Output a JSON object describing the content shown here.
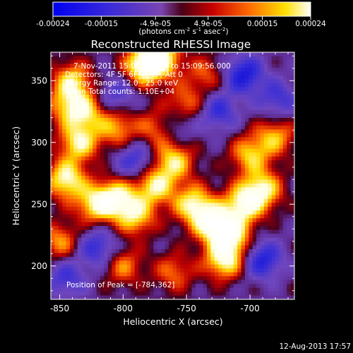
{
  "colorbar": {
    "ticks": [
      {
        "value": -0.00024,
        "label": "-0.00024"
      },
      {
        "value": -0.00015,
        "label": "-0.00015"
      },
      {
        "value": -4.9e-05,
        "label": "-4.9e-05"
      },
      {
        "value": 4.9e-05,
        "label": "4.9e-05"
      },
      {
        "value": 0.00015,
        "label": "0.00015"
      },
      {
        "value": 0.00024,
        "label": "0.00024"
      }
    ],
    "range": [
      -0.00024,
      0.00024
    ],
    "units_text": "(photons cm",
    "units_sup1": "-2",
    "units_mid": " s",
    "units_sup2": "-1",
    "units_tail": " asec",
    "units_sup3": "-2",
    "units_close": ")"
  },
  "chart_data": {
    "type": "heatmap",
    "title": "Reconstructed RHESSI Image",
    "xlabel": "Heliocentric X (arcsec)",
    "ylabel": "Heliocentric Y (arcsec)",
    "xlim": [
      -857,
      -665
    ],
    "ylim": [
      173,
      373
    ],
    "xticks": [
      {
        "value": -850,
        "label": "-850"
      },
      {
        "value": -800,
        "label": "-800"
      },
      {
        "value": -750,
        "label": "-750"
      },
      {
        "value": -700,
        "label": "-700"
      }
    ],
    "yticks": [
      {
        "value": 200,
        "label": "200"
      },
      {
        "value": 250,
        "label": "250"
      },
      {
        "value": 300,
        "label": "300"
      },
      {
        "value": 350,
        "label": "350"
      }
    ],
    "colormap": "rhessi-blue-purple-red-yellow-white",
    "annotations": [
      "7-Nov-2011 15:07:24.000 to 15:09:56.000",
      "Detectors: 4F 5F 6F 7F 8F, Att 0",
      "Energy Range: 12.0 - 25.0 keV",
      "Clean     Total counts: 1.10E+04",
      "Position of Peak = [-784,362]"
    ],
    "peak": {
      "x": -784,
      "y": 362
    },
    "bright_regions": [
      {
        "x": -784,
        "y": 362,
        "v": 1.0
      },
      {
        "x": -770,
        "y": 368,
        "v": 0.9
      },
      {
        "x": -845,
        "y": 270,
        "v": 0.95
      },
      {
        "x": -835,
        "y": 300,
        "v": 0.85
      },
      {
        "x": -822,
        "y": 250,
        "v": 0.8
      },
      {
        "x": -805,
        "y": 255,
        "v": 0.85
      },
      {
        "x": -790,
        "y": 240,
        "v": 0.75
      },
      {
        "x": -775,
        "y": 265,
        "v": 0.85
      },
      {
        "x": -760,
        "y": 285,
        "v": 0.8
      },
      {
        "x": -745,
        "y": 250,
        "v": 0.85
      },
      {
        "x": -730,
        "y": 235,
        "v": 0.95
      },
      {
        "x": -715,
        "y": 225,
        "v": 0.9
      },
      {
        "x": -705,
        "y": 250,
        "v": 0.9
      },
      {
        "x": -690,
        "y": 262,
        "v": 0.85
      },
      {
        "x": -720,
        "y": 205,
        "v": 0.95
      },
      {
        "x": -840,
        "y": 350,
        "v": 0.75
      },
      {
        "x": -830,
        "y": 325,
        "v": 0.7
      },
      {
        "x": -805,
        "y": 312,
        "v": 0.65
      },
      {
        "x": -772,
        "y": 312,
        "v": 0.65
      },
      {
        "x": -752,
        "y": 330,
        "v": 0.6
      },
      {
        "x": -700,
        "y": 290,
        "v": 0.7
      },
      {
        "x": -680,
        "y": 305,
        "v": 0.65
      },
      {
        "x": -850,
        "y": 220,
        "v": 0.6
      },
      {
        "x": -800,
        "y": 200,
        "v": 0.55
      },
      {
        "x": -760,
        "y": 195,
        "v": 0.5
      },
      {
        "x": -845,
        "y": 330,
        "v": 0.55
      },
      {
        "x": -735,
        "y": 355,
        "v": 0.45
      }
    ],
    "dark_regions": [
      {
        "x": -705,
        "y": 355,
        "v": -0.75
      },
      {
        "x": -690,
        "y": 205,
        "v": -0.7
      },
      {
        "x": -760,
        "y": 315,
        "v": -0.55
      },
      {
        "x": -790,
        "y": 285,
        "v": -0.55
      },
      {
        "x": -820,
        "y": 215,
        "v": -0.6
      },
      {
        "x": -845,
        "y": 190,
        "v": -0.5
      },
      {
        "x": -725,
        "y": 325,
        "v": -0.55
      },
      {
        "x": -805,
        "y": 338,
        "v": -0.45
      },
      {
        "x": -678,
        "y": 335,
        "v": -0.5
      }
    ]
  },
  "footer": {
    "date": "12-Aug-2013 17:57"
  }
}
